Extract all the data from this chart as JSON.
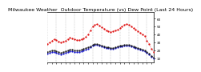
{
  "title": "Milwaukee Weather  Outdoor Temperature (vs) Dew Point (Last 24 Hours)",
  "title_fontsize": 4.5,
  "bg_color": "#ffffff",
  "plot_bg": "#ffffff",
  "temp_color": "#dd0000",
  "dew_color": "#0000cc",
  "black_color": "#111111",
  "grid_color": "#aaaaaa",
  "ylim": [
    5,
    68
  ],
  "yticks": [
    10,
    20,
    30,
    40,
    50,
    60
  ],
  "ytick_labels": [
    "10",
    "20",
    "30",
    "40",
    "50",
    "60"
  ],
  "num_points": 48,
  "temp_values": [
    28,
    30,
    32,
    34,
    33,
    31,
    30,
    31,
    32,
    34,
    36,
    35,
    34,
    33,
    33,
    34,
    35,
    37,
    40,
    45,
    50,
    52,
    53,
    51,
    49,
    47,
    45,
    44,
    43,
    44,
    45,
    46,
    48,
    50,
    52,
    53,
    52,
    50,
    48,
    46,
    44,
    42,
    40,
    38,
    32,
    28,
    22,
    18
  ],
  "dew_values": [
    16,
    17,
    18,
    18,
    17,
    16,
    15,
    16,
    17,
    18,
    19,
    19,
    18,
    18,
    18,
    19,
    20,
    21,
    22,
    24,
    26,
    27,
    27,
    26,
    25,
    24,
    23,
    23,
    22,
    22,
    23,
    24,
    25,
    25,
    26,
    26,
    26,
    25,
    24,
    23,
    22,
    21,
    20,
    19,
    17,
    15,
    12,
    10
  ],
  "black_values": [
    18,
    19,
    20,
    20,
    19,
    18,
    17,
    18,
    19,
    20,
    21,
    21,
    20,
    20,
    20,
    21,
    22,
    23,
    24,
    25,
    27,
    28,
    28,
    27,
    26,
    25,
    24,
    24,
    23,
    23,
    24,
    25,
    26,
    26,
    27,
    27,
    27,
    26,
    25,
    24,
    23,
    22,
    21,
    20,
    18,
    16,
    13,
    11
  ],
  "vline_positions": [
    0,
    4,
    8,
    12,
    16,
    20,
    24,
    28,
    32,
    36,
    40,
    44,
    47
  ],
  "marker_size": 1.2,
  "line_width": 0.4
}
